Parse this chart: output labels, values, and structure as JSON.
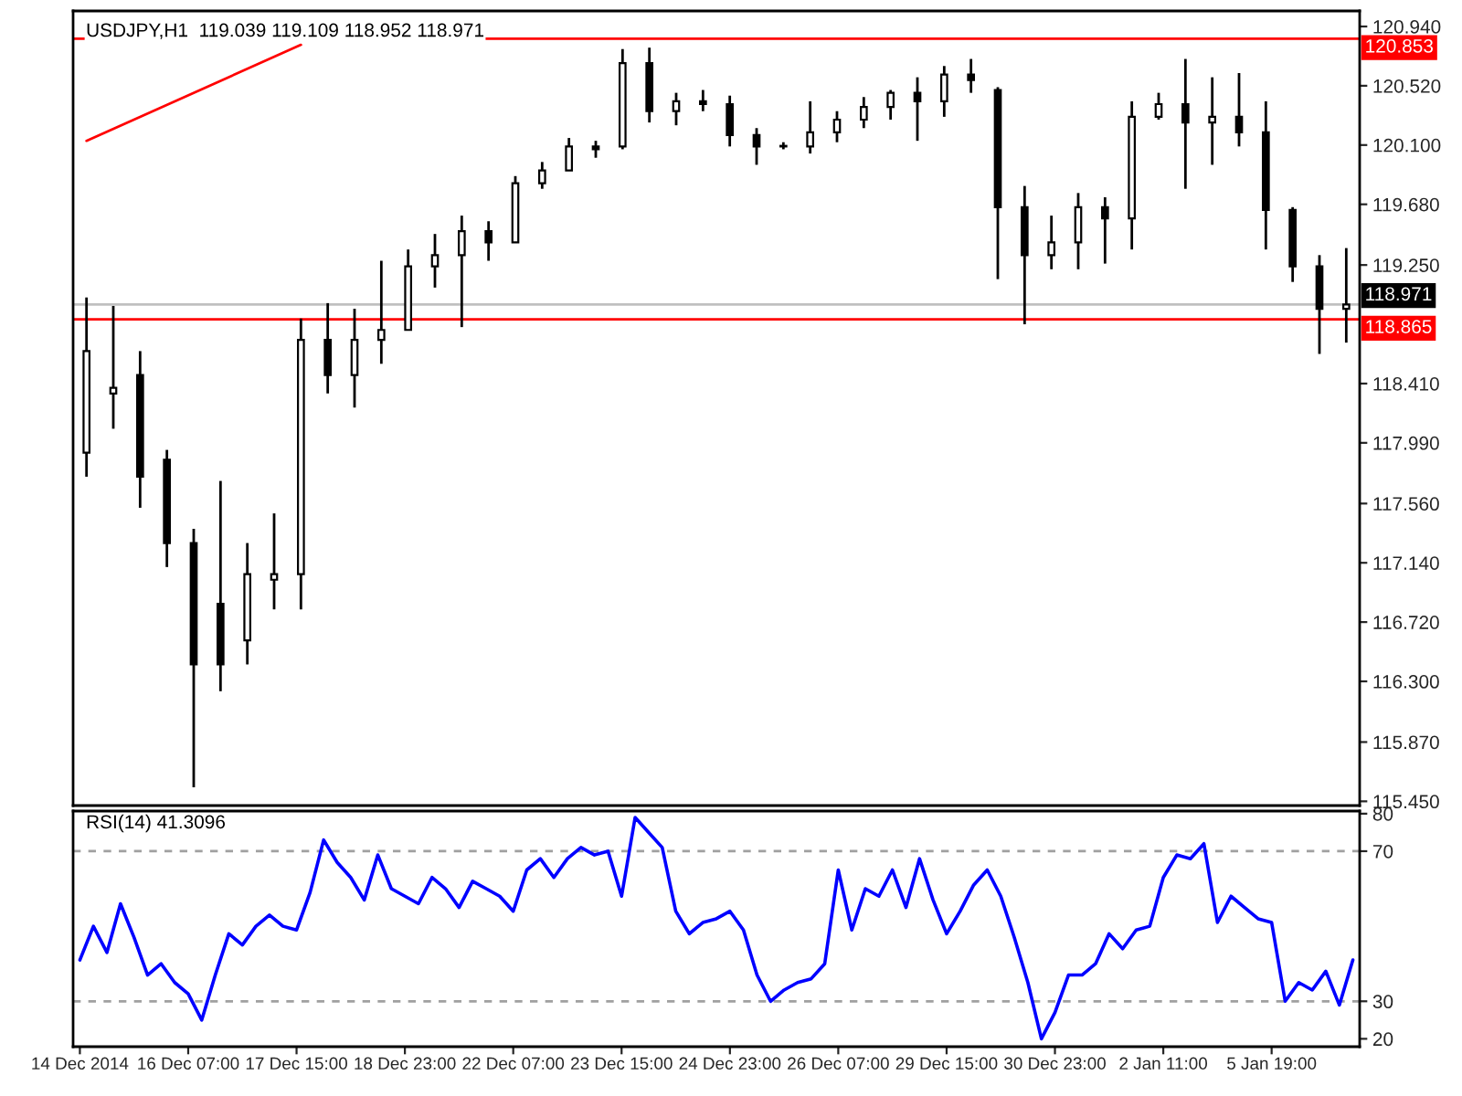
{
  "chart_data": [
    {
      "type": "candlestick",
      "title": "USDJPY,H1  119.039 119.109 118.952 118.971",
      "color": "#000000",
      "categories": [
        null,
        null,
        null,
        null,
        null,
        null,
        null,
        null,
        null,
        null,
        null,
        null,
        null,
        null,
        null,
        null,
        null,
        null,
        null,
        null,
        null,
        null,
        null,
        null,
        null,
        null,
        null,
        null,
        null,
        null,
        null,
        null,
        null,
        null,
        null,
        null,
        null,
        null,
        null,
        null,
        null,
        null,
        null,
        null,
        null,
        null,
        null,
        null
      ],
      "ohlc": [
        [
          117.92,
          119.02,
          117.75,
          118.64
        ],
        [
          118.34,
          118.96,
          118.09,
          118.38
        ],
        [
          118.47,
          118.64,
          117.53,
          117.75
        ],
        [
          117.87,
          117.94,
          117.11,
          117.28
        ],
        [
          117.28,
          117.38,
          115.55,
          116.42
        ],
        [
          116.85,
          117.72,
          116.23,
          116.42
        ],
        [
          116.59,
          117.28,
          116.42,
          117.06
        ],
        [
          117.02,
          117.49,
          116.81,
          117.06
        ],
        [
          117.06,
          118.87,
          116.81,
          118.72
        ],
        [
          118.72,
          118.98,
          118.34,
          118.47
        ],
        [
          118.47,
          118.94,
          118.24,
          118.72
        ],
        [
          118.72,
          119.28,
          118.55,
          118.79
        ],
        [
          118.79,
          119.36,
          118.79,
          119.24
        ],
        [
          119.24,
          119.47,
          119.09,
          119.32
        ],
        [
          119.32,
          119.6,
          118.81,
          119.49
        ],
        [
          119.49,
          119.56,
          119.28,
          119.41
        ],
        [
          119.41,
          119.88,
          119.41,
          119.83
        ],
        [
          119.83,
          119.98,
          119.79,
          119.92
        ],
        [
          119.92,
          120.15,
          119.92,
          120.09
        ],
        [
          120.09,
          120.13,
          120.01,
          120.07
        ],
        [
          120.09,
          120.78,
          120.07,
          120.68
        ],
        [
          120.68,
          120.79,
          120.26,
          120.34
        ],
        [
          120.34,
          120.47,
          120.24,
          120.41
        ],
        [
          120.41,
          120.49,
          120.34,
          120.39
        ],
        [
          120.39,
          120.45,
          120.09,
          120.17
        ],
        [
          120.17,
          120.22,
          119.96,
          120.09
        ],
        [
          120.09,
          120.12,
          120.07,
          120.09
        ],
        [
          120.09,
          120.41,
          120.04,
          120.19
        ],
        [
          120.19,
          120.34,
          120.12,
          120.28
        ],
        [
          120.28,
          120.44,
          120.22,
          120.37
        ],
        [
          120.37,
          120.49,
          120.28,
          120.47
        ],
        [
          120.47,
          120.58,
          120.13,
          120.41
        ],
        [
          120.41,
          120.66,
          120.3,
          120.6
        ],
        [
          120.6,
          120.71,
          120.47,
          120.56
        ],
        [
          120.49,
          120.51,
          119.15,
          119.66
        ],
        [
          119.66,
          119.81,
          118.83,
          119.32
        ],
        [
          119.32,
          119.6,
          119.22,
          119.41
        ],
        [
          119.41,
          119.76,
          119.22,
          119.66
        ],
        [
          119.66,
          119.73,
          119.26,
          119.58
        ],
        [
          119.58,
          120.41,
          119.36,
          120.3
        ],
        [
          120.3,
          120.47,
          120.28,
          120.39
        ],
        [
          120.39,
          120.71,
          119.79,
          120.26
        ],
        [
          120.26,
          120.58,
          119.96,
          120.3
        ],
        [
          120.3,
          120.61,
          120.09,
          120.19
        ],
        [
          120.19,
          120.41,
          119.36,
          119.64
        ],
        [
          119.64,
          119.66,
          119.13,
          119.24
        ],
        [
          119.24,
          119.32,
          118.62,
          118.94
        ],
        [
          118.94,
          119.37,
          118.7,
          118.971
        ]
      ],
      "series": [
        {
          "type": "line",
          "color": "#ff0000",
          "values": [
            120.13,
            null,
            null,
            null,
            null,
            null,
            null,
            null,
            120.81,
            null,
            null,
            null,
            null,
            null,
            null,
            null,
            null,
            null,
            null,
            null,
            null,
            null,
            null,
            null,
            null,
            null,
            null,
            null,
            null,
            null,
            null,
            null,
            null,
            null,
            null,
            null,
            null,
            null,
            null,
            null,
            null,
            null,
            null,
            null,
            null,
            null,
            null,
            null
          ]
        }
      ],
      "ylim": [
        115.42,
        121.05
      ],
      "yticks": [
        {
          "value": 115.45,
          "label": "115.450"
        },
        {
          "value": 115.87,
          "label": "115.870"
        },
        {
          "value": 116.3,
          "label": "116.300"
        },
        {
          "value": 116.72,
          "label": "116.720"
        },
        {
          "value": 117.14,
          "label": "117.140"
        },
        {
          "value": 117.56,
          "label": "117.560"
        },
        {
          "value": 117.99,
          "label": "117.990"
        },
        {
          "value": 118.41,
          "label": "118.410"
        },
        {
          "value": 119.25,
          "label": "119.250"
        },
        {
          "value": 119.68,
          "label": "119.680"
        },
        {
          "value": 120.1,
          "label": "120.100"
        },
        {
          "value": 120.52,
          "label": "120.520"
        },
        {
          "value": 120.94,
          "label": "120.940"
        }
      ],
      "ref_lines": [
        {
          "axis": "y",
          "value": 120.853,
          "label": "120.853",
          "color": "#ff0000"
        },
        {
          "axis": "y",
          "value": 118.971,
          "label": "118.971",
          "color": "#c0c0c0"
        },
        {
          "axis": "y",
          "value": 118.865,
          "label": "118.865",
          "color": "#ff0000"
        }
      ],
      "tick_labels": "y",
      "grid": false,
      "legend": false
    },
    {
      "type": "line",
      "title": "RSI(14) 41.3096",
      "categories": [
        "14 Dec 2014",
        null,
        null,
        null,
        null,
        null,
        null,
        null,
        "16 Dec 07:00",
        null,
        null,
        null,
        null,
        null,
        null,
        null,
        "17 Dec 15:00",
        null,
        null,
        null,
        null,
        null,
        null,
        null,
        "18 Dec 23:00",
        null,
        null,
        null,
        null,
        null,
        null,
        null,
        "22 Dec 07:00",
        null,
        null,
        null,
        null,
        null,
        null,
        null,
        "23 Dec 15:00",
        null,
        null,
        null,
        null,
        null,
        null,
        null,
        "24 Dec 23:00",
        null,
        null,
        null,
        null,
        null,
        null,
        null,
        "26 Dec 07:00",
        null,
        null,
        null,
        null,
        null,
        null,
        null,
        "29 Dec 15:00",
        null,
        null,
        null,
        null,
        null,
        null,
        null,
        "30 Dec 23:00",
        null,
        null,
        null,
        null,
        null,
        null,
        null,
        "2 Jan 11:00",
        null,
        null,
        null,
        null,
        null,
        null,
        null,
        "5 Jan 19:00",
        null,
        null,
        null,
        null,
        null,
        null
      ],
      "series": [
        {
          "color": "#0000ff",
          "values": [
            41,
            50,
            43,
            56,
            47,
            37,
            40,
            35,
            32,
            25,
            37,
            48,
            45,
            50,
            53,
            50,
            49,
            59,
            73,
            67,
            63,
            57,
            69,
            60,
            58,
            56,
            63,
            60,
            55,
            62,
            60,
            58,
            54,
            65,
            68,
            63,
            68,
            71,
            69,
            70,
            58,
            79,
            75,
            71,
            54,
            48,
            51,
            52,
            54,
            49,
            37,
            30,
            33,
            35,
            36,
            40,
            65,
            49,
            60,
            58,
            65,
            55,
            68,
            57,
            48,
            54,
            61,
            65,
            58,
            47,
            35,
            20,
            27,
            37,
            37,
            40,
            48,
            44,
            49,
            50,
            63,
            69,
            68,
            72,
            51,
            58,
            55,
            52,
            51,
            30,
            35,
            33,
            38,
            29,
            41
          ]
        }
      ],
      "ylim": [
        17.9,
        80.7
      ],
      "yticks": [
        20,
        30,
        70,
        80
      ],
      "ref_lines": [
        {
          "axis": "y",
          "value": 30,
          "color": "#a0a0a0",
          "line_style": "dashed"
        },
        {
          "axis": "y",
          "value": 70,
          "color": "#a0a0a0",
          "line_style": "dashed"
        }
      ],
      "grid": false,
      "legend": false,
      "line_style": "solid",
      "marker": "none"
    }
  ]
}
